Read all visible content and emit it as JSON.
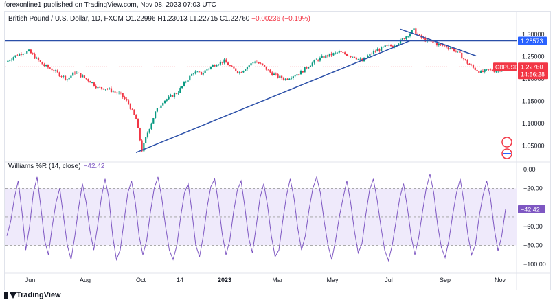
{
  "publisher": "forexonline1 published on TradingView.com, Nov 08, 2023 07:03 UTC",
  "footer_brand": "TradingView",
  "colors": {
    "up": "#089981",
    "down": "#f23645",
    "line": "#2962ff",
    "trend": "#2a4fa8",
    "wr": "#7e57c2",
    "band": "#efeafb"
  },
  "chart_data": [
    {
      "type": "candlestick",
      "symbol": "British Pound / U.S. Dollar, 1D, FXCM",
      "ohlc_label": {
        "o": "O1.22996",
        "h": "H1.23013",
        "l": "L1.22715",
        "c": "C1.22760",
        "chg": "−0.00236 (−0.19%)"
      },
      "x_ticks": [
        "Jun",
        "Aug",
        "Oct",
        "14",
        "2023",
        "Mar",
        "May",
        "Jul",
        "Sep",
        "Nov"
      ],
      "y_ticks": [
        "1.30000",
        "1.25000",
        "1.20000",
        "1.15000",
        "1.10000",
        "1.05000"
      ],
      "ylim": [
        1.02,
        1.325
      ],
      "horizontal_line": {
        "value": 1.28573,
        "label": "1.28573"
      },
      "last_price": {
        "value": 1.2276,
        "symbol": "GBPUSD",
        "price": "1.22760",
        "countdown": "14:56:28"
      },
      "trendlines": [
        {
          "from": [
            "Sep 26",
            1.035
          ],
          "to": [
            "Jul 14",
            1.285
          ]
        },
        {
          "from": [
            "Jul 13",
            1.31
          ],
          "to": [
            "Oct 10",
            1.245
          ]
        }
      ],
      "path_points": [
        [
          0,
          1.238
        ],
        [
          4,
          1.25
        ],
        [
          8,
          1.258
        ],
        [
          12,
          1.262
        ],
        [
          16,
          1.245
        ],
        [
          20,
          1.23
        ],
        [
          24,
          1.222
        ],
        [
          28,
          1.21
        ],
        [
          32,
          1.2
        ],
        [
          36,
          1.215
        ],
        [
          40,
          1.205
        ],
        [
          44,
          1.195
        ],
        [
          48,
          1.18
        ],
        [
          52,
          1.18
        ],
        [
          56,
          1.172
        ],
        [
          60,
          1.165
        ],
        [
          64,
          1.145
        ],
        [
          68,
          1.11
        ],
        [
          71,
          1.04
        ],
        [
          74,
          1.08
        ],
        [
          78,
          1.125
        ],
        [
          82,
          1.15
        ],
        [
          86,
          1.16
        ],
        [
          90,
          1.172
        ],
        [
          94,
          1.195
        ],
        [
          98,
          1.215
        ],
        [
          102,
          1.212
        ],
        [
          106,
          1.225
        ],
        [
          110,
          1.235
        ],
        [
          114,
          1.24
        ],
        [
          118,
          1.225
        ],
        [
          122,
          1.215
        ],
        [
          126,
          1.228
        ],
        [
          130,
          1.24
        ],
        [
          134,
          1.23
        ],
        [
          138,
          1.215
        ],
        [
          142,
          1.205
        ],
        [
          146,
          1.2
        ],
        [
          150,
          1.208
        ],
        [
          154,
          1.215
        ],
        [
          158,
          1.23
        ],
        [
          162,
          1.242
        ],
        [
          166,
          1.25
        ],
        [
          170,
          1.255
        ],
        [
          174,
          1.26
        ],
        [
          178,
          1.255
        ],
        [
          182,
          1.25
        ],
        [
          186,
          1.24
        ],
        [
          190,
          1.255
        ],
        [
          194,
          1.265
        ],
        [
          198,
          1.272
        ],
        [
          202,
          1.275
        ],
        [
          206,
          1.285
        ],
        [
          210,
          1.3
        ],
        [
          213,
          1.31
        ],
        [
          216,
          1.295
        ],
        [
          220,
          1.285
        ],
        [
          224,
          1.28
        ],
        [
          228,
          1.275
        ],
        [
          232,
          1.27
        ],
        [
          236,
          1.26
        ],
        [
          240,
          1.24
        ],
        [
          244,
          1.225
        ],
        [
          248,
          1.215
        ],
        [
          252,
          1.22
        ],
        [
          256,
          1.218
        ],
        [
          260,
          1.225
        ]
      ]
    },
    {
      "type": "line",
      "title": "Williams %R (14, close)",
      "last_value": "−42.42",
      "y_ticks": [
        "0.00",
        "−20.00",
        "−40.00",
        "−60.00",
        "−80.00",
        "−100.00"
      ],
      "ylim": [
        -105,
        2
      ],
      "band": [
        -80,
        -20
      ],
      "values": [
        -70,
        -55,
        -30,
        -12,
        -45,
        -85,
        -60,
        -25,
        -8,
        -40,
        -75,
        -90,
        -60,
        -35,
        -20,
        -50,
        -80,
        -95,
        -70,
        -40,
        -15,
        -35,
        -65,
        -85,
        -60,
        -30,
        -10,
        -30,
        -70,
        -95,
        -85,
        -55,
        -25,
        -12,
        -35,
        -70,
        -90,
        -75,
        -45,
        -20,
        -8,
        -30,
        -60,
        -85,
        -95,
        -80,
        -50,
        -25,
        -15,
        -45,
        -80,
        -92,
        -70,
        -40,
        -18,
        -10,
        -35,
        -68,
        -90,
        -75,
        -45,
        -22,
        -12,
        -40,
        -72,
        -88,
        -60,
        -30,
        -15,
        -38,
        -70,
        -92,
        -85,
        -55,
        -28,
        -10,
        -30,
        -62,
        -85,
        -70,
        -42,
        -20,
        -8,
        -25,
        -55,
        -80,
        -95,
        -75,
        -50,
        -30,
        -12,
        -35,
        -65,
        -88,
        -78,
        -48,
        -22,
        -10,
        -32,
        -60,
        -85,
        -96,
        -80,
        -55,
        -30,
        -15,
        -40,
        -70,
        -90,
        -72,
        -45,
        -20,
        -5,
        -25,
        -58,
        -82,
        -93,
        -75,
        -48,
        -25,
        -10,
        -35,
        -68,
        -90,
        -80,
        -50,
        -28,
        -12,
        -30,
        -62,
        -86,
        -70,
        -42
      ]
    }
  ]
}
